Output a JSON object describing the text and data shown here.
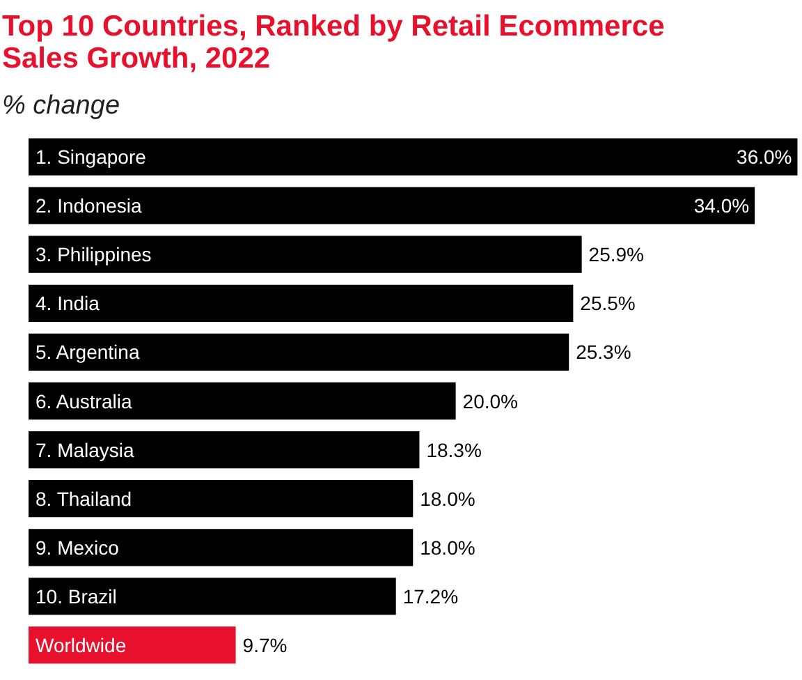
{
  "chart_data": {
    "type": "bar",
    "orientation": "horizontal",
    "title": "Top 10 Countries, Ranked by Retail Ecommerce Sales Growth, 2022",
    "subtitle": "% change",
    "categories": [
      "1. Singapore",
      "2. Indonesia",
      "3. Philippines",
      "4. India",
      "5. Argentina",
      "6. Australia",
      "7. Malaysia",
      "8. Thailand",
      "9. Mexico",
      "10. Brazil",
      "Worldwide"
    ],
    "values": [
      36.0,
      34.0,
      25.9,
      25.5,
      25.3,
      20.0,
      18.3,
      18.0,
      18.0,
      17.2,
      9.7
    ],
    "value_labels": [
      "36.0%",
      "34.0%",
      "25.9%",
      "25.5%",
      "25.3%",
      "20.0%",
      "18.3%",
      "18.0%",
      "18.0%",
      "17.2%",
      "9.7%"
    ],
    "colors": [
      "#000000",
      "#000000",
      "#000000",
      "#000000",
      "#000000",
      "#000000",
      "#000000",
      "#000000",
      "#000000",
      "#000000",
      "#e8112d"
    ],
    "grid": false
  }
}
